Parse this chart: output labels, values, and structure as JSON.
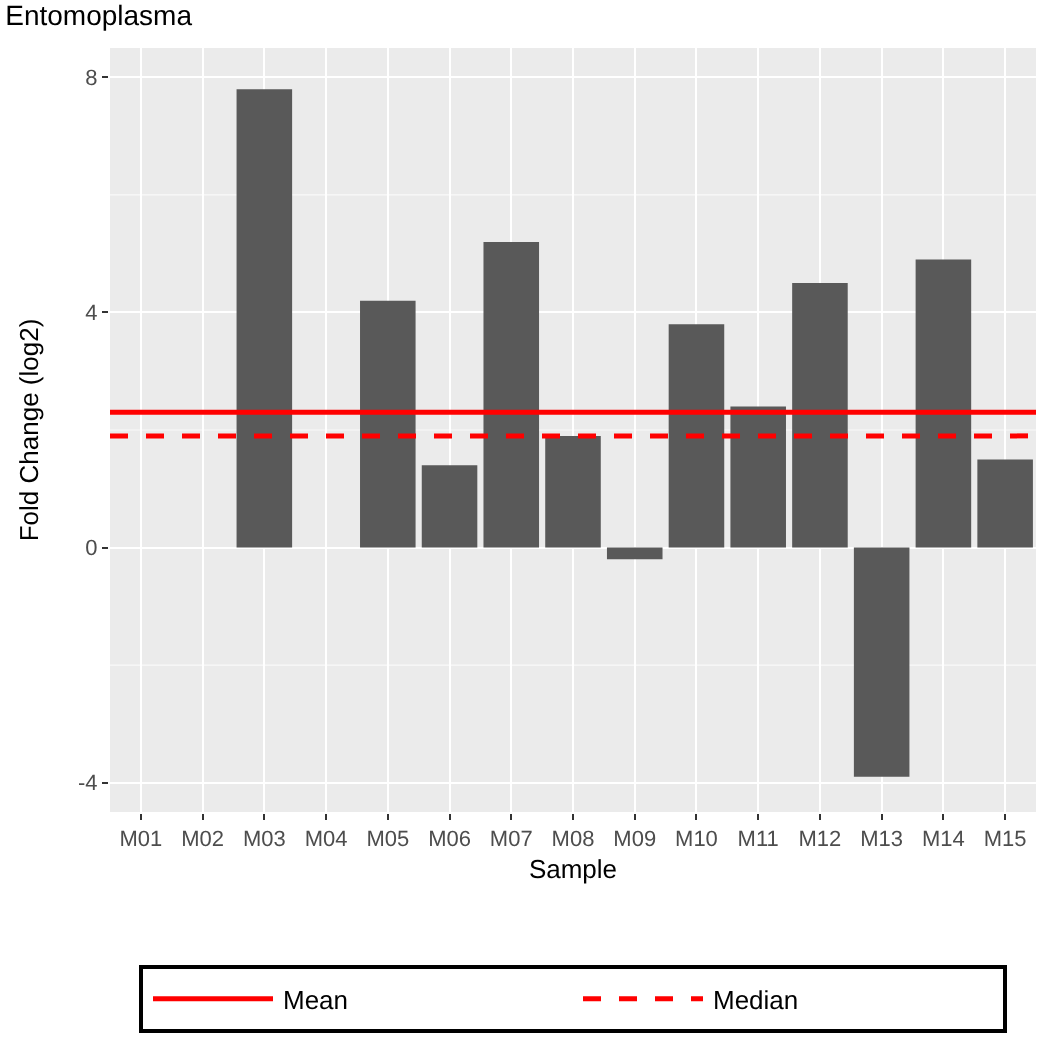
{
  "chart_data": {
    "type": "bar",
    "title": "Entomoplasma",
    "xlabel": "Sample",
    "ylabel": "Fold Change (log2)",
    "categories": [
      "M01",
      "M02",
      "M03",
      "M04",
      "M05",
      "M06",
      "M07",
      "M08",
      "M09",
      "M10",
      "M11",
      "M12",
      "M13",
      "M14",
      "M15"
    ],
    "values": [
      null,
      null,
      7.8,
      null,
      4.2,
      1.4,
      5.2,
      1.9,
      -0.2,
      3.8,
      2.4,
      4.5,
      -3.9,
      4.9,
      1.5
    ],
    "color": "#595959",
    "ylim": [
      -4.5,
      8.5
    ],
    "yticks": [
      -4,
      0,
      4,
      8
    ],
    "grid": true,
    "legend": "bottom",
    "ref_lines": [
      {
        "axis": "y",
        "value": 2.3,
        "label": "Mean",
        "color": "#ff0000",
        "line_style": "solid"
      },
      {
        "axis": "y",
        "value": 1.9,
        "label": "Median",
        "color": "#ff0000",
        "line_style": "dashed"
      }
    ]
  }
}
